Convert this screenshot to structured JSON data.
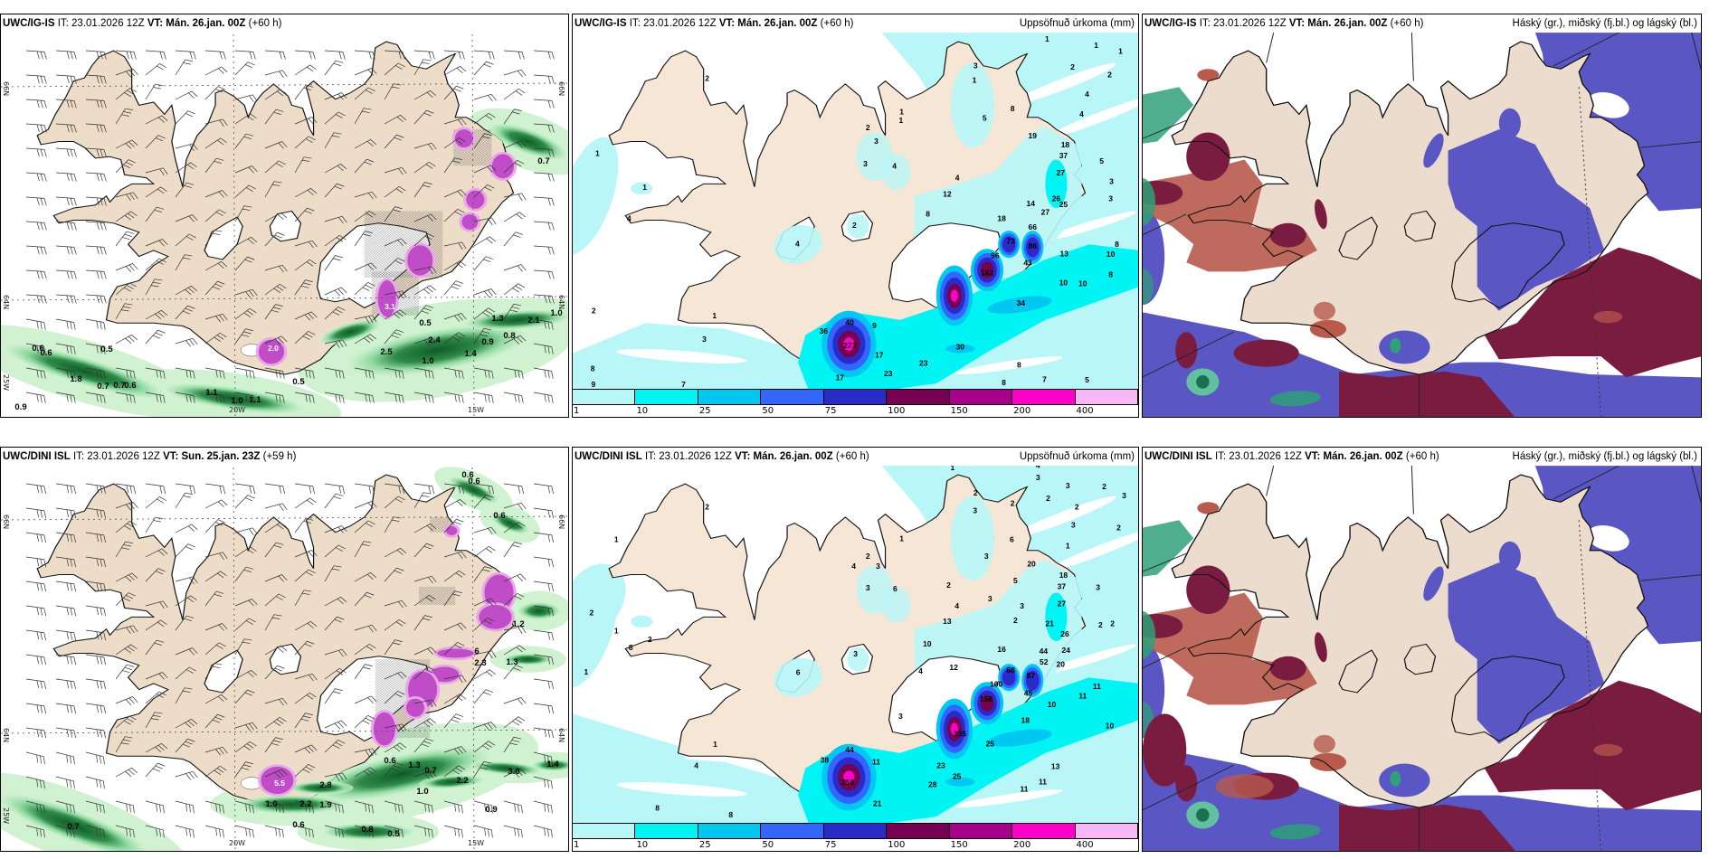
{
  "panels": [
    {
      "model": "UWC/IG-IS",
      "it": "IT: 23.01.2026 12Z",
      "vt": "VT: Mán. 26.jan. 00Z",
      "lead": "(+60 h)"
    },
    {
      "model": "UWC/IG-IS",
      "it": "IT: 23.01.2026 12Z",
      "vt": "VT: Mán. 26.jan. 00Z",
      "lead": "(+60 h)",
      "subtitle": "Uppsöfnuð úrkoma (mm)"
    },
    {
      "model": "UWC/IG-IS",
      "it": "IT: 23.01.2026 12Z",
      "vt": "VT: Mán. 26.jan. 00Z",
      "lead": "(+60 h)",
      "subtitle": "Háský (gr.), miðský (fj.bl.) og lágský (bl.)"
    },
    {
      "model": "UWC/DINI ISL",
      "it": "IT: 23.01.2026 12Z",
      "vt": "VT: Sun. 25.jan. 23Z",
      "lead": "(+59 h)"
    },
    {
      "model": "UWC/DINI ISL",
      "it": "IT: 23.01.2026 12Z",
      "vt": "VT: Mán. 26.jan. 00Z",
      "lead": "(+60 h)",
      "subtitle": "Uppsöfnuð úrkoma (mm)"
    },
    {
      "model": "UWC/DINI ISL",
      "it": "IT: 23.01.2026 12Z",
      "vt": "VT: Mán. 26.jan. 00Z",
      "lead": "(+60 h)",
      "subtitle": "Háský (gr.), miðský (fj.bl.) og lágský (bl.)"
    }
  ],
  "graticule": {
    "lat_north": "66N",
    "lat_south": "64N",
    "lon_west": "25W",
    "lon_mid": "20W",
    "lon_east": "15W"
  },
  "colorbar": {
    "labels": [
      "1",
      "10",
      "25",
      "50",
      "75",
      "100",
      "150",
      "200",
      "400"
    ],
    "colors": [
      "#b8f6f8",
      "#00f4f4",
      "#00c8f0",
      "#3366ff",
      "#2a2ac8",
      "#780050",
      "#a8008c",
      "#ff00c8",
      "#f8b8f8"
    ]
  },
  "wind_top_labels": [
    "0.7",
    "0.5",
    "1.3",
    "2.1",
    "1.0",
    "2.4",
    "0.9",
    "0.8",
    "2.5",
    "1.4",
    "1.0",
    "0.6",
    "0.6",
    "0.5",
    "1.8",
    "0.7",
    "0.7",
    "0.6",
    "0.5",
    "1.1",
    "1.0",
    "1.1",
    "0.9",
    "2.0",
    "3.1"
  ],
  "wind_bottom_labels": [
    "0.6",
    "0.6",
    "0.6",
    "1.2",
    "2.3",
    "1.3",
    "6",
    "0.6",
    "1.3",
    "0.7",
    "3.0",
    "1.4",
    "2.2",
    "2.8",
    "1.0",
    "0.9",
    "1.0",
    "2.2",
    "1.9",
    "0.7",
    "0.6",
    "0.8",
    "0.5",
    "5.5"
  ],
  "precip_top_labels": [
    "1",
    "2",
    "1",
    "1",
    "4",
    "2",
    "1",
    "3",
    "8",
    "9",
    "7",
    "2",
    "3",
    "3",
    "4",
    "1",
    "1",
    "2",
    "4",
    "3",
    "1",
    "8",
    "5",
    "19",
    "18",
    "37",
    "27",
    "4",
    "12",
    "8",
    "18",
    "14",
    "27",
    "26",
    "25",
    "66",
    "73",
    "86",
    "96",
    "43",
    "13",
    "182",
    "10",
    "10",
    "34",
    "40",
    "9",
    "36",
    "273",
    "17",
    "30",
    "23",
    "23",
    "17",
    "8",
    "8",
    "7",
    "5",
    "4",
    "4",
    "2",
    "2",
    "5",
    "3",
    "3",
    "8",
    "10",
    "8",
    "1",
    "1"
  ],
  "precip_bottom_labels": [
    "1",
    "4",
    "3",
    "2",
    "1",
    "2",
    "3",
    "2",
    "3",
    "2",
    "3",
    "2",
    "2",
    "3",
    "2",
    "6",
    "1",
    "1",
    "3",
    "20",
    "2",
    "4",
    "3",
    "3",
    "6",
    "2",
    "5",
    "18",
    "37",
    "3",
    "3",
    "4",
    "3",
    "27",
    "13",
    "2",
    "21",
    "2",
    "2",
    "26",
    "2",
    "1",
    "8",
    "2",
    "3",
    "10",
    "16",
    "44",
    "24",
    "52",
    "20",
    "6",
    "1",
    "4",
    "12",
    "68",
    "87",
    "11",
    "100",
    "45",
    "11",
    "158",
    "10",
    "3",
    "18",
    "10",
    "335",
    "25",
    "1",
    "44",
    "38",
    "11",
    "4",
    "23",
    "13",
    "25",
    "258",
    "28",
    "11",
    "11",
    "21",
    "8",
    "8"
  ]
}
